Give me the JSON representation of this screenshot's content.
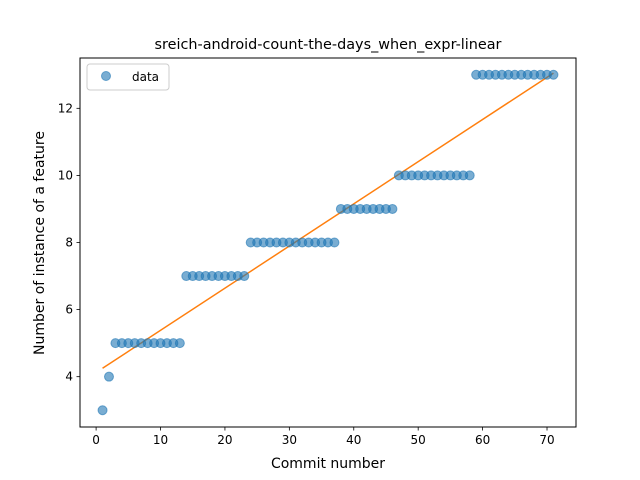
{
  "chart_data": {
    "type": "scatter",
    "title": "sreich-android-count-the-days_when_expr-linear",
    "xlabel": "Commit number",
    "ylabel": "Number of instance of a feature",
    "xlim": [
      -2.5,
      74.5
    ],
    "ylim": [
      2.5,
      13.5
    ],
    "xticks": [
      0,
      10,
      20,
      30,
      40,
      50,
      60,
      70
    ],
    "yticks": [
      4,
      6,
      8,
      10,
      12
    ],
    "grid": false,
    "legend": {
      "placement": "top-left",
      "entries": [
        "data"
      ]
    },
    "colors": {
      "data": "#1f77b4",
      "fit": "#ff7f0e"
    },
    "series": [
      {
        "name": "data",
        "kind": "scatter",
        "x": [
          1,
          2,
          3,
          4,
          5,
          6,
          7,
          8,
          9,
          10,
          11,
          12,
          13,
          14,
          15,
          16,
          17,
          18,
          19,
          20,
          21,
          22,
          23,
          24,
          25,
          26,
          27,
          28,
          29,
          30,
          31,
          32,
          33,
          34,
          35,
          36,
          37,
          38,
          39,
          40,
          41,
          42,
          43,
          44,
          45,
          46,
          47,
          48,
          49,
          50,
          51,
          52,
          53,
          54,
          55,
          56,
          57,
          58,
          59,
          60,
          61,
          62,
          63,
          64,
          65,
          66,
          67,
          68,
          69,
          70,
          71
        ],
        "y": [
          3,
          4,
          5,
          5,
          5,
          5,
          5,
          5,
          5,
          5,
          5,
          5,
          5,
          7,
          7,
          7,
          7,
          7,
          7,
          7,
          7,
          7,
          7,
          8,
          8,
          8,
          8,
          8,
          8,
          8,
          8,
          8,
          8,
          8,
          8,
          8,
          8,
          9,
          9,
          9,
          9,
          9,
          9,
          9,
          9,
          9,
          10,
          10,
          10,
          10,
          10,
          10,
          10,
          10,
          10,
          10,
          10,
          10,
          13,
          13,
          13,
          13,
          13,
          13,
          13,
          13,
          13,
          13,
          13,
          13,
          13
        ]
      },
      {
        "name": "",
        "kind": "line",
        "x": [
          1,
          71
        ],
        "y": [
          4.25,
          13.05
        ]
      }
    ]
  }
}
